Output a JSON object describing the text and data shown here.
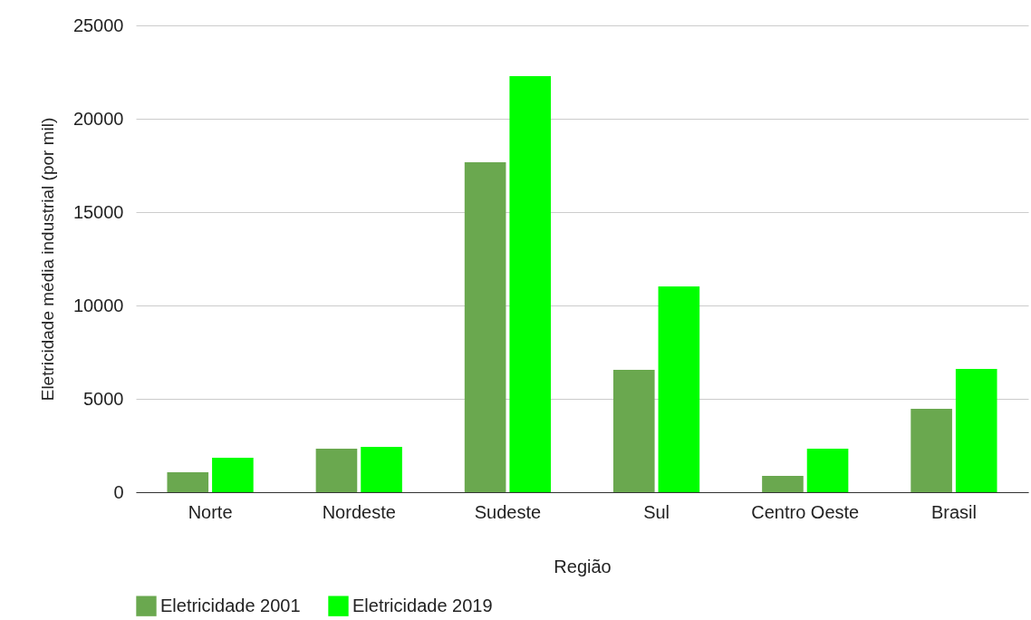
{
  "chart_data": {
    "type": "bar",
    "xlabel": "Região",
    "ylabel": "Eletricidade média industrial (por mil)",
    "categories": [
      "Norte",
      "Nordeste",
      "Sudeste",
      "Sul",
      "Centro Oeste",
      "Brasil"
    ],
    "series": [
      {
        "name": "Eletricidade 2001",
        "color": "#6aa84f",
        "values": [
          1070,
          2330,
          17670,
          6550,
          870,
          4470
        ]
      },
      {
        "name": "Eletricidade 2019",
        "color": "#00ff00",
        "values": [
          1840,
          2430,
          22280,
          11020,
          2330,
          6600
        ]
      }
    ],
    "ylim": [
      0,
      25000
    ],
    "yticks": [
      0,
      5000,
      10000,
      15000,
      20000,
      25000
    ],
    "grid": "y",
    "legend": "bottom"
  }
}
